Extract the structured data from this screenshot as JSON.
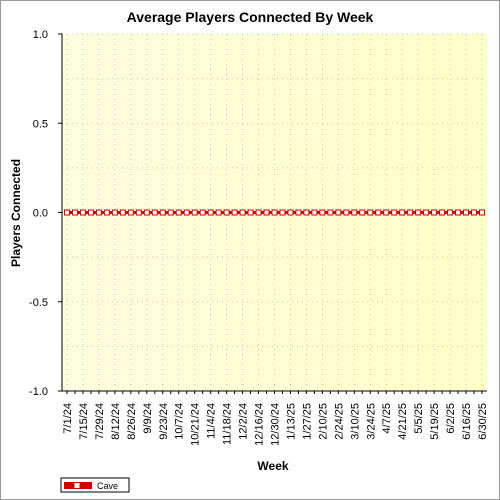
{
  "chart_data": {
    "type": "line",
    "title": "Average Players Connected By Week",
    "xlabel": "Week",
    "ylabel": "Players Connected",
    "ylim": [
      -1.0,
      1.0
    ],
    "yticks": [
      "1.0",
      "0.5",
      "0.0",
      "-0.5",
      "-1.0"
    ],
    "ytick_values": [
      1.0,
      0.5,
      0.0,
      -0.5,
      -1.0
    ],
    "x": [
      "7/1/24",
      "7/8/24",
      "7/15/24",
      "7/22/24",
      "7/29/24",
      "8/5/24",
      "8/12/24",
      "8/19/24",
      "8/26/24",
      "9/2/24",
      "9/9/24",
      "9/16/24",
      "9/23/24",
      "9/30/24",
      "10/7/24",
      "10/14/24",
      "10/21/24",
      "10/28/24",
      "11/4/24",
      "11/11/24",
      "11/18/24",
      "11/25/24",
      "12/2/24",
      "12/9/24",
      "12/16/24",
      "12/23/24",
      "12/30/24",
      "1/6/25",
      "1/13/25",
      "1/20/25",
      "1/27/25",
      "2/3/25",
      "2/10/25",
      "2/17/25",
      "2/24/25",
      "3/3/25",
      "3/10/25",
      "3/17/25",
      "3/24/25",
      "3/31/25",
      "4/7/25",
      "4/14/25",
      "4/21/25",
      "4/28/25",
      "5/5/25",
      "5/12/25",
      "5/19/25",
      "5/26/25",
      "6/2/25",
      "6/9/25",
      "6/16/25",
      "6/23/25",
      "6/30/25"
    ],
    "xtick_labels": [
      "7/1/24",
      "7/15/24",
      "7/29/24",
      "8/12/24",
      "8/26/24",
      "9/9/24",
      "9/23/24",
      "10/7/24",
      "10/21/24",
      "11/4/24",
      "11/18/24",
      "12/2/24",
      "12/16/24",
      "12/30/24",
      "1/13/25",
      "1/27/25",
      "2/10/25",
      "2/24/25",
      "3/10/25",
      "3/24/25",
      "4/7/25",
      "4/21/25",
      "5/5/25",
      "5/19/25",
      "6/2/25",
      "6/16/25",
      "6/30/25"
    ],
    "series": [
      {
        "name": "Cave",
        "color": "#cc0000",
        "values": [
          0,
          0,
          0,
          0,
          0,
          0,
          0,
          0,
          0,
          0,
          0,
          0,
          0,
          0,
          0,
          0,
          0,
          0,
          0,
          0,
          0,
          0,
          0,
          0,
          0,
          0,
          0,
          0,
          0,
          0,
          0,
          0,
          0,
          0,
          0,
          0,
          0,
          0,
          0,
          0,
          0,
          0,
          0,
          0,
          0,
          0,
          0,
          0,
          0,
          0,
          0,
          0,
          0
        ]
      }
    ],
    "grid": true,
    "legend_position": "bottom-left"
  },
  "colors": {
    "plot_background_left": "#fdfde0",
    "plot_background_right": "#ffffc8",
    "grid": "#c8c8a0",
    "axis": "#000000",
    "series_line": "#cc0000",
    "marker_fill": "#ffffff"
  }
}
